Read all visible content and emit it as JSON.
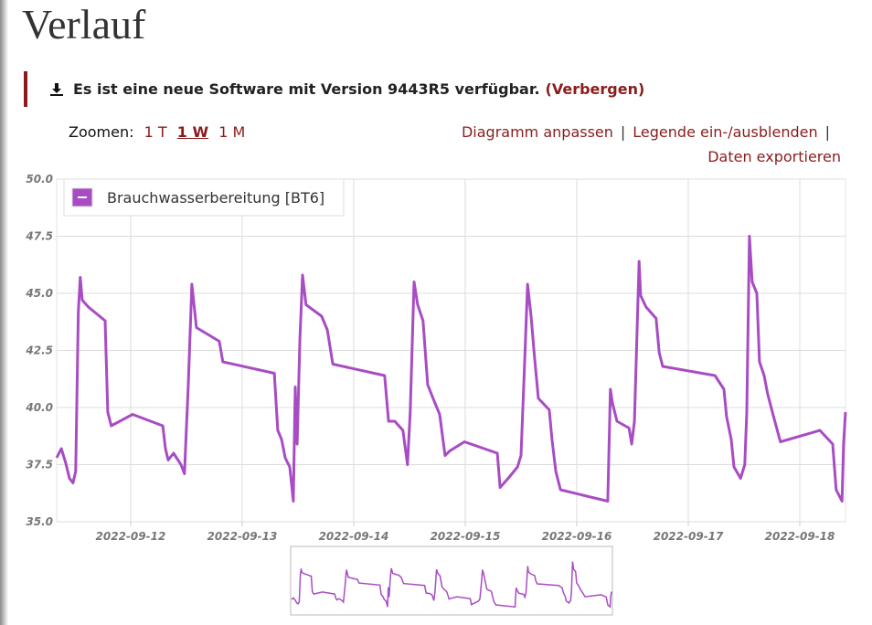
{
  "page": {
    "title": "Verlauf",
    "notice": {
      "text": "Es ist eine neue Software mit Version 9443R5 verfügbar.",
      "link": "(Verbergen)"
    },
    "zoom": {
      "label": "Zoomen:",
      "options": [
        "1 T",
        "1 W",
        "1 M"
      ],
      "active": 1
    },
    "actions": [
      "Diagramm anpassen",
      "Legende ein-/ausblenden",
      "Daten exportieren"
    ],
    "separator": "|"
  },
  "chart_data": {
    "type": "line",
    "legend": "top-left",
    "grid": true,
    "xlim": [
      "2022-09-11 08:05",
      "2022-09-18 09:50"
    ],
    "xticks": [
      "2022-09-12",
      "2022-09-13",
      "2022-09-14",
      "2022-09-15",
      "2022-09-16",
      "2022-09-17",
      "2022-09-18"
    ],
    "ylim": [
      35,
      50
    ],
    "yticks": [
      {
        "value": 35,
        "label": "35.0"
      },
      37.5,
      {
        "value": 40,
        "label": "40.0"
      },
      42.5,
      {
        "value": 45,
        "label": "45.0"
      },
      47.5,
      {
        "value": 50,
        "label": "50.0"
      }
    ],
    "x": [
      "2022-09-11 08:05",
      "2022-09-11 09:05",
      "2022-09-11 10:00",
      "2022-09-11 10:50",
      "2022-09-11 11:35",
      "2022-09-11 12:10",
      "2022-09-11 12:45",
      "2022-09-11 13:10",
      "2022-09-11 13:35",
      "2022-09-11 14:55",
      "2022-09-11 18:30",
      "2022-09-11 19:05",
      "2022-09-11 19:50",
      "2022-09-12 00:25",
      "2022-09-12 06:55",
      "2022-09-12 07:30",
      "2022-09-12 08:05",
      "2022-09-12 09:15",
      "2022-09-12 10:50",
      "2022-09-12 11:35",
      "2022-09-12 12:25",
      "2022-09-12 13:10",
      "2022-09-12 14:10",
      "2022-09-12 19:05",
      "2022-09-12 19:50",
      "2022-09-13 06:55",
      "2022-09-13 07:40",
      "2022-09-13 08:30",
      "2022-09-13 09:15",
      "2022-09-13 10:15",
      "2022-09-13 11:00",
      "2022-09-13 11:25",
      "2022-09-13 11:50",
      "2022-09-13 12:25",
      "2022-09-13 13:00",
      "2022-09-13 13:45",
      "2022-09-13 17:05",
      "2022-09-13 18:20",
      "2022-09-13 19:30",
      "2022-09-14 06:40",
      "2022-09-14 07:30",
      "2022-09-14 08:50",
      "2022-09-14 10:35",
      "2022-09-14 11:35",
      "2022-09-14 12:10",
      "2022-09-14 13:00",
      "2022-09-14 13:45",
      "2022-09-14 14:55",
      "2022-09-14 15:55",
      "2022-09-14 17:05",
      "2022-09-14 18:30",
      "2022-09-14 19:40",
      "2022-09-14 20:40",
      "2022-09-14 23:50",
      "2022-09-15 06:55",
      "2022-09-15 07:30",
      "2022-09-15 09:15",
      "2022-09-15 11:15",
      "2022-09-15 12:00",
      "2022-09-15 12:45",
      "2022-09-15 13:25",
      "2022-09-15 14:10",
      "2022-09-15 14:55",
      "2022-09-15 15:45",
      "2022-09-15 18:05",
      "2022-09-15 18:40",
      "2022-09-15 19:30",
      "2022-09-15 20:30",
      "2022-09-16 06:40",
      "2022-09-16 07:15",
      "2022-09-16 07:40",
      "2022-09-16 08:40",
      "2022-09-16 11:15",
      "2022-09-16 11:50",
      "2022-09-16 12:25",
      "2022-09-16 13:25",
      "2022-09-16 13:45",
      "2022-09-16 14:55",
      "2022-09-16 17:05",
      "2022-09-16 17:45",
      "2022-09-16 18:30",
      "2022-09-17 05:45",
      "2022-09-17 07:40",
      "2022-09-17 08:15",
      "2022-09-17 09:15",
      "2022-09-17 09:50",
      "2022-09-17 11:15",
      "2022-09-17 12:10",
      "2022-09-17 12:35",
      "2022-09-17 13:10",
      "2022-09-17 13:45",
      "2022-09-17 14:45",
      "2022-09-17 15:20",
      "2022-09-17 16:20",
      "2022-09-17 17:05",
      "2022-09-17 18:30",
      "2022-09-17 19:50",
      "2022-09-18 04:20",
      "2022-09-18 07:05",
      "2022-09-18 07:50",
      "2022-09-18 09:05",
      "2022-09-18 09:25",
      "2022-09-18 09:50"
    ],
    "series": [
      {
        "name": "Brauchwasserbereitung [BT6]",
        "color": "#a84cc4",
        "values": [
          37.8,
          38.2,
          37.6,
          36.9,
          36.7,
          37.2,
          44.2,
          45.7,
          44.7,
          44.4,
          43.8,
          39.8,
          39.2,
          39.7,
          39.2,
          38.2,
          37.7,
          38.0,
          37.5,
          37.1,
          41.0,
          45.4,
          43.5,
          42.9,
          42.0,
          41.5,
          39.0,
          38.6,
          37.8,
          37.4,
          35.9,
          40.9,
          38.4,
          43.0,
          45.8,
          44.5,
          44.0,
          43.4,
          41.9,
          41.4,
          39.4,
          39.4,
          39.0,
          37.5,
          39.8,
          45.5,
          44.5,
          43.8,
          41.0,
          40.4,
          39.7,
          37.9,
          38.1,
          38.5,
          38.0,
          36.5,
          36.9,
          37.4,
          37.9,
          41.8,
          45.4,
          44.0,
          42.2,
          40.4,
          39.9,
          38.6,
          37.2,
          36.4,
          35.9,
          40.8,
          40.2,
          39.4,
          39.1,
          38.4,
          39.4,
          46.4,
          44.9,
          44.4,
          43.9,
          42.4,
          41.8,
          41.4,
          40.8,
          39.6,
          38.6,
          37.4,
          36.9,
          37.5,
          39.8,
          47.5,
          45.5,
          45.0,
          42.0,
          41.4,
          40.6,
          39.5,
          38.5,
          39.0,
          38.4,
          36.4,
          35.9,
          38.4,
          39.8
        ]
      }
    ]
  }
}
